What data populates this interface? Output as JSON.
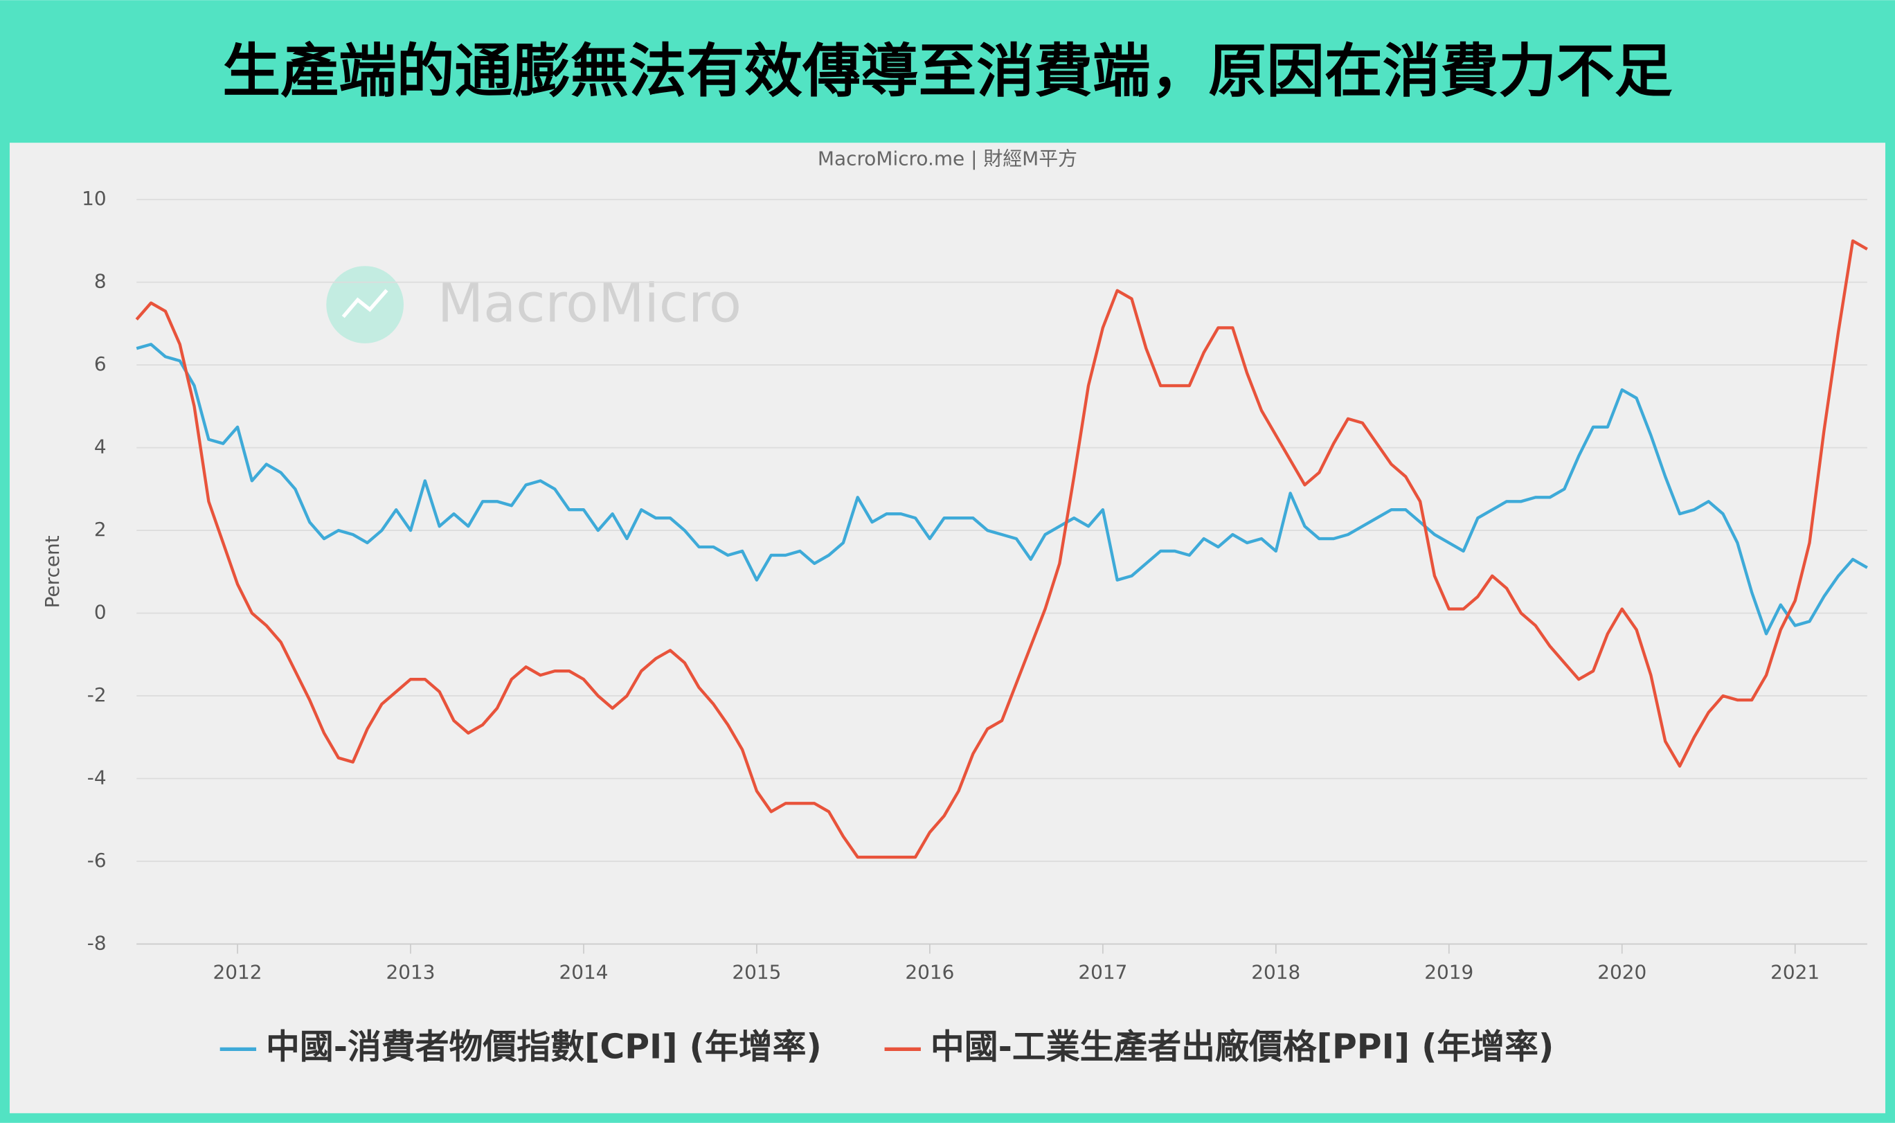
{
  "chart_data": {
    "type": "line",
    "title": "生產端的通膨無法有效傳導至消費端，原因在消費力不足",
    "subtitle": "MacroMicro.me | 財經M平方",
    "watermark": "MacroMicro",
    "y_label": "Percent",
    "x": [
      "2011-06",
      "2011-07",
      "2011-08",
      "2011-09",
      "2011-10",
      "2011-11",
      "2011-12",
      "2012-01",
      "2012-02",
      "2012-03",
      "2012-04",
      "2012-05",
      "2012-06",
      "2012-07",
      "2012-08",
      "2012-09",
      "2012-10",
      "2012-11",
      "2012-12",
      "2013-01",
      "2013-02",
      "2013-03",
      "2013-04",
      "2013-05",
      "2013-06",
      "2013-07",
      "2013-08",
      "2013-09",
      "2013-10",
      "2013-11",
      "2013-12",
      "2014-01",
      "2014-02",
      "2014-03",
      "2014-04",
      "2014-05",
      "2014-06",
      "2014-07",
      "2014-08",
      "2014-09",
      "2014-10",
      "2014-11",
      "2014-12",
      "2015-01",
      "2015-02",
      "2015-03",
      "2015-04",
      "2015-05",
      "2015-06",
      "2015-07",
      "2015-08",
      "2015-09",
      "2015-10",
      "2015-11",
      "2015-12",
      "2016-01",
      "2016-02",
      "2016-03",
      "2016-04",
      "2016-05",
      "2016-06",
      "2016-07",
      "2016-08",
      "2016-09",
      "2016-10",
      "2016-11",
      "2016-12",
      "2017-01",
      "2017-02",
      "2017-03",
      "2017-04",
      "2017-05",
      "2017-06",
      "2017-07",
      "2017-08",
      "2017-09",
      "2017-10",
      "2017-11",
      "2017-12",
      "2018-01",
      "2018-02",
      "2018-03",
      "2018-04",
      "2018-05",
      "2018-06",
      "2018-07",
      "2018-08",
      "2018-09",
      "2018-10",
      "2018-11",
      "2018-12",
      "2019-01",
      "2019-02",
      "2019-03",
      "2019-04",
      "2019-05",
      "2019-06",
      "2019-07",
      "2019-08",
      "2019-09",
      "2019-10",
      "2019-11",
      "2019-12",
      "2020-01",
      "2020-02",
      "2020-03",
      "2020-04",
      "2020-05",
      "2020-06",
      "2020-07",
      "2020-08",
      "2020-09",
      "2020-10",
      "2020-11",
      "2020-12",
      "2021-01",
      "2021-02",
      "2021-03",
      "2021-04",
      "2021-05",
      "2021-06"
    ],
    "series": [
      {
        "name": "中國-消費者物價指數[CPI] (年增率)",
        "color": "#3eaad8",
        "values": [
          6.4,
          6.5,
          6.2,
          6.1,
          5.5,
          4.2,
          4.1,
          4.5,
          3.2,
          3.6,
          3.4,
          3.0,
          2.2,
          1.8,
          2.0,
          1.9,
          1.7,
          2.0,
          2.5,
          2.0,
          3.2,
          2.1,
          2.4,
          2.1,
          2.7,
          2.7,
          2.6,
          3.1,
          3.2,
          3.0,
          2.5,
          2.5,
          2.0,
          2.4,
          1.8,
          2.5,
          2.3,
          2.3,
          2.0,
          1.6,
          1.6,
          1.4,
          1.5,
          0.8,
          1.4,
          1.4,
          1.5,
          1.2,
          1.4,
          1.7,
          2.8,
          2.2,
          2.4,
          2.4,
          2.3,
          1.8,
          2.3,
          2.3,
          2.3,
          2.0,
          1.9,
          1.8,
          1.3,
          1.9,
          2.1,
          2.3,
          2.1,
          2.5,
          0.8,
          0.9,
          1.2,
          1.5,
          1.5,
          1.4,
          1.8,
          1.6,
          1.9,
          1.7,
          1.8,
          1.5,
          2.9,
          2.1,
          1.8,
          1.8,
          1.9,
          2.1,
          2.3,
          2.5,
          2.5,
          2.2,
          1.9,
          1.7,
          1.5,
          2.3,
          2.5,
          2.7,
          2.7,
          2.8,
          2.8,
          3.0,
          3.8,
          4.5,
          4.5,
          5.4,
          5.2,
          4.3,
          3.3,
          2.4,
          2.5,
          2.7,
          2.4,
          1.7,
          0.5,
          -0.5,
          0.2,
          -0.3,
          -0.2,
          0.4,
          0.9,
          1.3,
          1.1
        ]
      },
      {
        "name": "中國-工業生產者出廠價格[PPI] (年增率)",
        "color": "#e8533b",
        "values": [
          7.1,
          7.5,
          7.3,
          6.5,
          5.0,
          2.7,
          1.7,
          0.7,
          0.0,
          -0.3,
          -0.7,
          -1.4,
          -2.1,
          -2.9,
          -3.5,
          -3.6,
          -2.8,
          -2.2,
          -1.9,
          -1.6,
          -1.6,
          -1.9,
          -2.6,
          -2.9,
          -2.7,
          -2.3,
          -1.6,
          -1.3,
          -1.5,
          -1.4,
          -1.4,
          -1.6,
          -2.0,
          -2.3,
          -2.0,
          -1.4,
          -1.1,
          -0.9,
          -1.2,
          -1.8,
          -2.2,
          -2.7,
          -3.3,
          -4.3,
          -4.8,
          -4.6,
          -4.6,
          -4.6,
          -4.8,
          -5.4,
          -5.9,
          -5.9,
          -5.9,
          -5.9,
          -5.9,
          -5.3,
          -4.9,
          -4.3,
          -3.4,
          -2.8,
          -2.6,
          -1.7,
          -0.8,
          0.1,
          1.2,
          3.3,
          5.5,
          6.9,
          7.8,
          7.6,
          6.4,
          5.5,
          5.5,
          5.5,
          6.3,
          6.9,
          6.9,
          5.8,
          4.9,
          4.3,
          3.7,
          3.1,
          3.4,
          4.1,
          4.7,
          4.6,
          4.1,
          3.6,
          3.3,
          2.7,
          0.9,
          0.1,
          0.1,
          0.4,
          0.9,
          0.6,
          0.0,
          -0.3,
          -0.8,
          -1.2,
          -1.6,
          -1.4,
          -0.5,
          0.1,
          -0.4,
          -1.5,
          -3.1,
          -3.7,
          -3.0,
          -2.4,
          -2.0,
          -2.1,
          -2.1,
          -1.5,
          -0.4,
          0.3,
          1.7,
          4.4,
          6.8,
          9.0,
          8.8
        ]
      }
    ],
    "xlim": [
      "2011-06",
      "2021-06"
    ],
    "xticks": [
      2012,
      2013,
      2014,
      2015,
      2016,
      2017,
      2018,
      2019,
      2020,
      2021
    ],
    "ylim": [
      -8,
      10
    ],
    "yticks": [
      -8,
      -6,
      -4,
      -2,
      0,
      2,
      4,
      6,
      8,
      10
    ],
    "grid": true,
    "legend": "bottom"
  }
}
